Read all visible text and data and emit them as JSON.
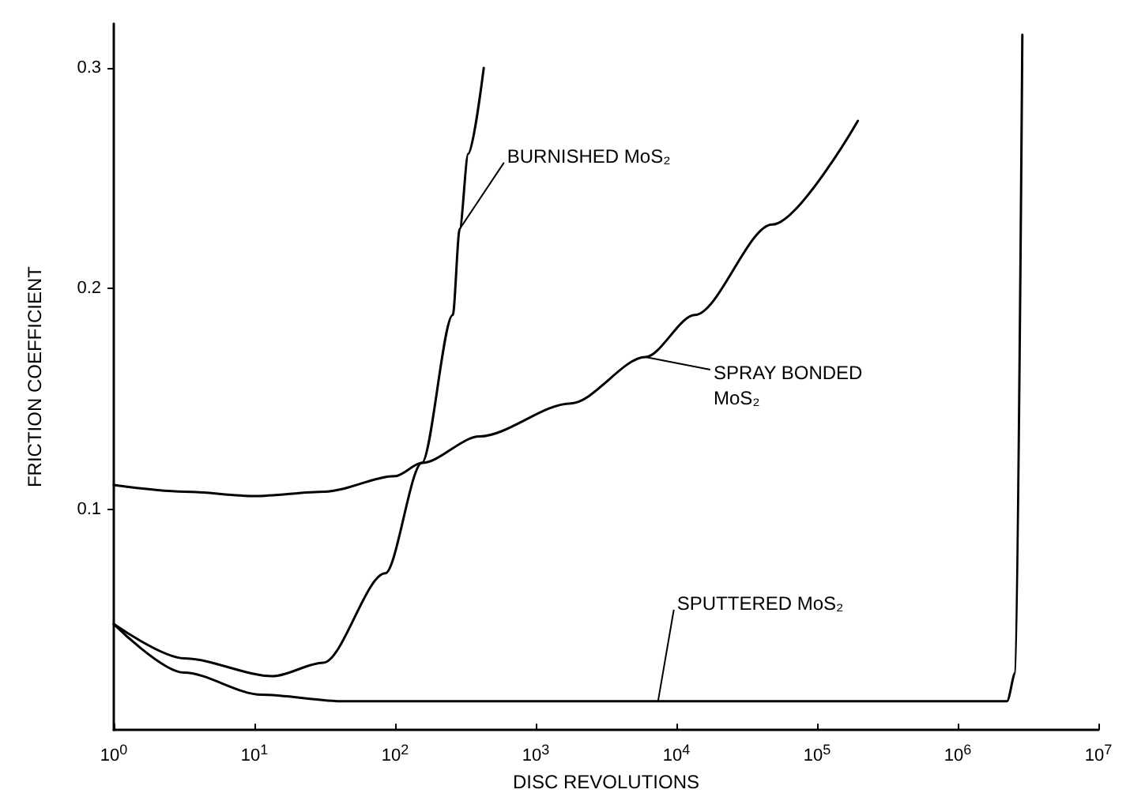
{
  "chart_data": {
    "type": "line",
    "xlabel": "DISC REVOLUTIONS",
    "ylabel": "FRICTION COEFFICIENT",
    "log": "x",
    "xlim": [
      1,
      10000000
    ],
    "xticks": [
      {
        "value": 1,
        "label": "10$^{0}$"
      },
      {
        "value": 10,
        "label": "10$^{1}$"
      },
      {
        "value": 100,
        "label": "10$^{2}$"
      },
      {
        "value": 1000,
        "label": "10$^{3}$"
      },
      {
        "value": 10000,
        "label": "10$^{4}$"
      },
      {
        "value": 100000,
        "label": "10$^{5}$"
      },
      {
        "value": 1000000,
        "label": "10$^{6}$"
      },
      {
        "value": 10000000,
        "label": "10$^{7}$"
      }
    ],
    "ylim": [
      0,
      0.32
    ],
    "yticks": [
      0.1,
      0.2,
      0.3
    ],
    "grid": false,
    "marker": "none",
    "line_style": "solid",
    "series": [
      {
        "color": "#000000",
        "x": [
          1,
          3.16,
          13.5,
          30.9,
          85.1,
          155,
          257,
          288,
          331,
          427
        ],
        "values": [
          0.048,
          0.0325,
          0.0244,
          0.0305,
          0.071,
          0.121,
          0.188,
          0.227,
          0.261,
          0.3
        ]
      },
      {
        "color": "#000000",
        "x": [
          1,
          3.16,
          10,
          31.6,
          100,
          155,
          398,
          1780,
          6030,
          13500,
          47900,
          195000
        ],
        "values": [
          0.111,
          0.108,
          0.106,
          0.108,
          0.115,
          0.121,
          0.133,
          0.148,
          0.169,
          0.188,
          0.229,
          0.276
        ]
      },
      {
        "color": "#000000",
        "x": [
          1,
          3.16,
          11.2,
          43.7,
          1000,
          100000,
          2240000,
          2570000,
          2880000
        ],
        "values": [
          0.048,
          0.026,
          0.016,
          0.013,
          0.013,
          0.013,
          0.013,
          0.026,
          0.315
        ]
      }
    ],
    "annotations": [
      {
        "text": "BURNISHED MoS₂",
        "x": 288,
        "y": 0.227
      },
      {
        "text": "SPRAY BONDED\nMoS₂",
        "x": 6030,
        "y": 0.169
      },
      {
        "text": "SPUTTERED MoS₂",
        "x": 7400,
        "y": 0.013
      }
    ]
  }
}
